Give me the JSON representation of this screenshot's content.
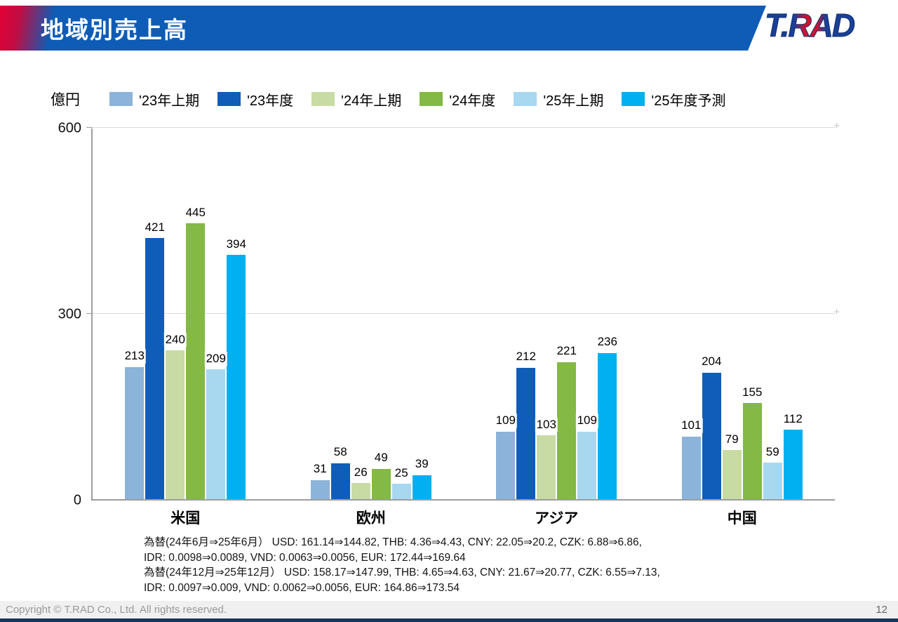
{
  "header": {
    "title": "地域別売上高",
    "logo_text": "T.RAD"
  },
  "chart_data": {
    "type": "bar",
    "title": "地域別売上高",
    "unit_label": "億円",
    "categories": [
      "米国",
      "欧州",
      "アジア",
      "中国"
    ],
    "series": [
      {
        "name": "'23年上期",
        "color": "#8cb3d9",
        "values": [
          213,
          31,
          109,
          101
        ]
      },
      {
        "name": "'23年度",
        "color": "#0f5db8",
        "values": [
          421,
          58,
          212,
          204
        ]
      },
      {
        "name": "'24年上期",
        "color": "#c8dba5",
        "values": [
          240,
          26,
          103,
          79
        ]
      },
      {
        "name": "'24年度",
        "color": "#83b944",
        "values": [
          445,
          49,
          221,
          155
        ]
      },
      {
        "name": "'25年上期",
        "color": "#a8d7f0",
        "values": [
          209,
          25,
          109,
          59
        ]
      },
      {
        "name": "'25年度予測",
        "color": "#00b0f0",
        "values": [
          394,
          39,
          236,
          112
        ]
      }
    ],
    "ylim": [
      0,
      600
    ],
    "yticks": [
      0,
      300,
      600
    ],
    "grid": true,
    "legend_position": "top"
  },
  "notes": {
    "lines": [
      "為替(24年6月⇒25年6月） USD: 161.14⇒144.82, THB: 4.36⇒4.43, CNY: 22.05⇒20.2, CZK: 6.88⇒6.86,",
      "IDR: 0.0098⇒0.0089, VND: 0.0063⇒0.0056, EUR: 172.44⇒169.64",
      "為替(24年12月⇒25年12月） USD: 158.17⇒147.99, THB: 4.65⇒4.63, CNY: 21.67⇒20.77, CZK: 6.55⇒7.13,",
      "IDR: 0.0097⇒0.009, VND: 0.0062⇒0.0056, EUR: 164.86⇒173.54"
    ]
  },
  "footer": {
    "copyright": "Copyright © T.RAD Co., Ltd. All rights reserved.",
    "page_number": "12"
  }
}
